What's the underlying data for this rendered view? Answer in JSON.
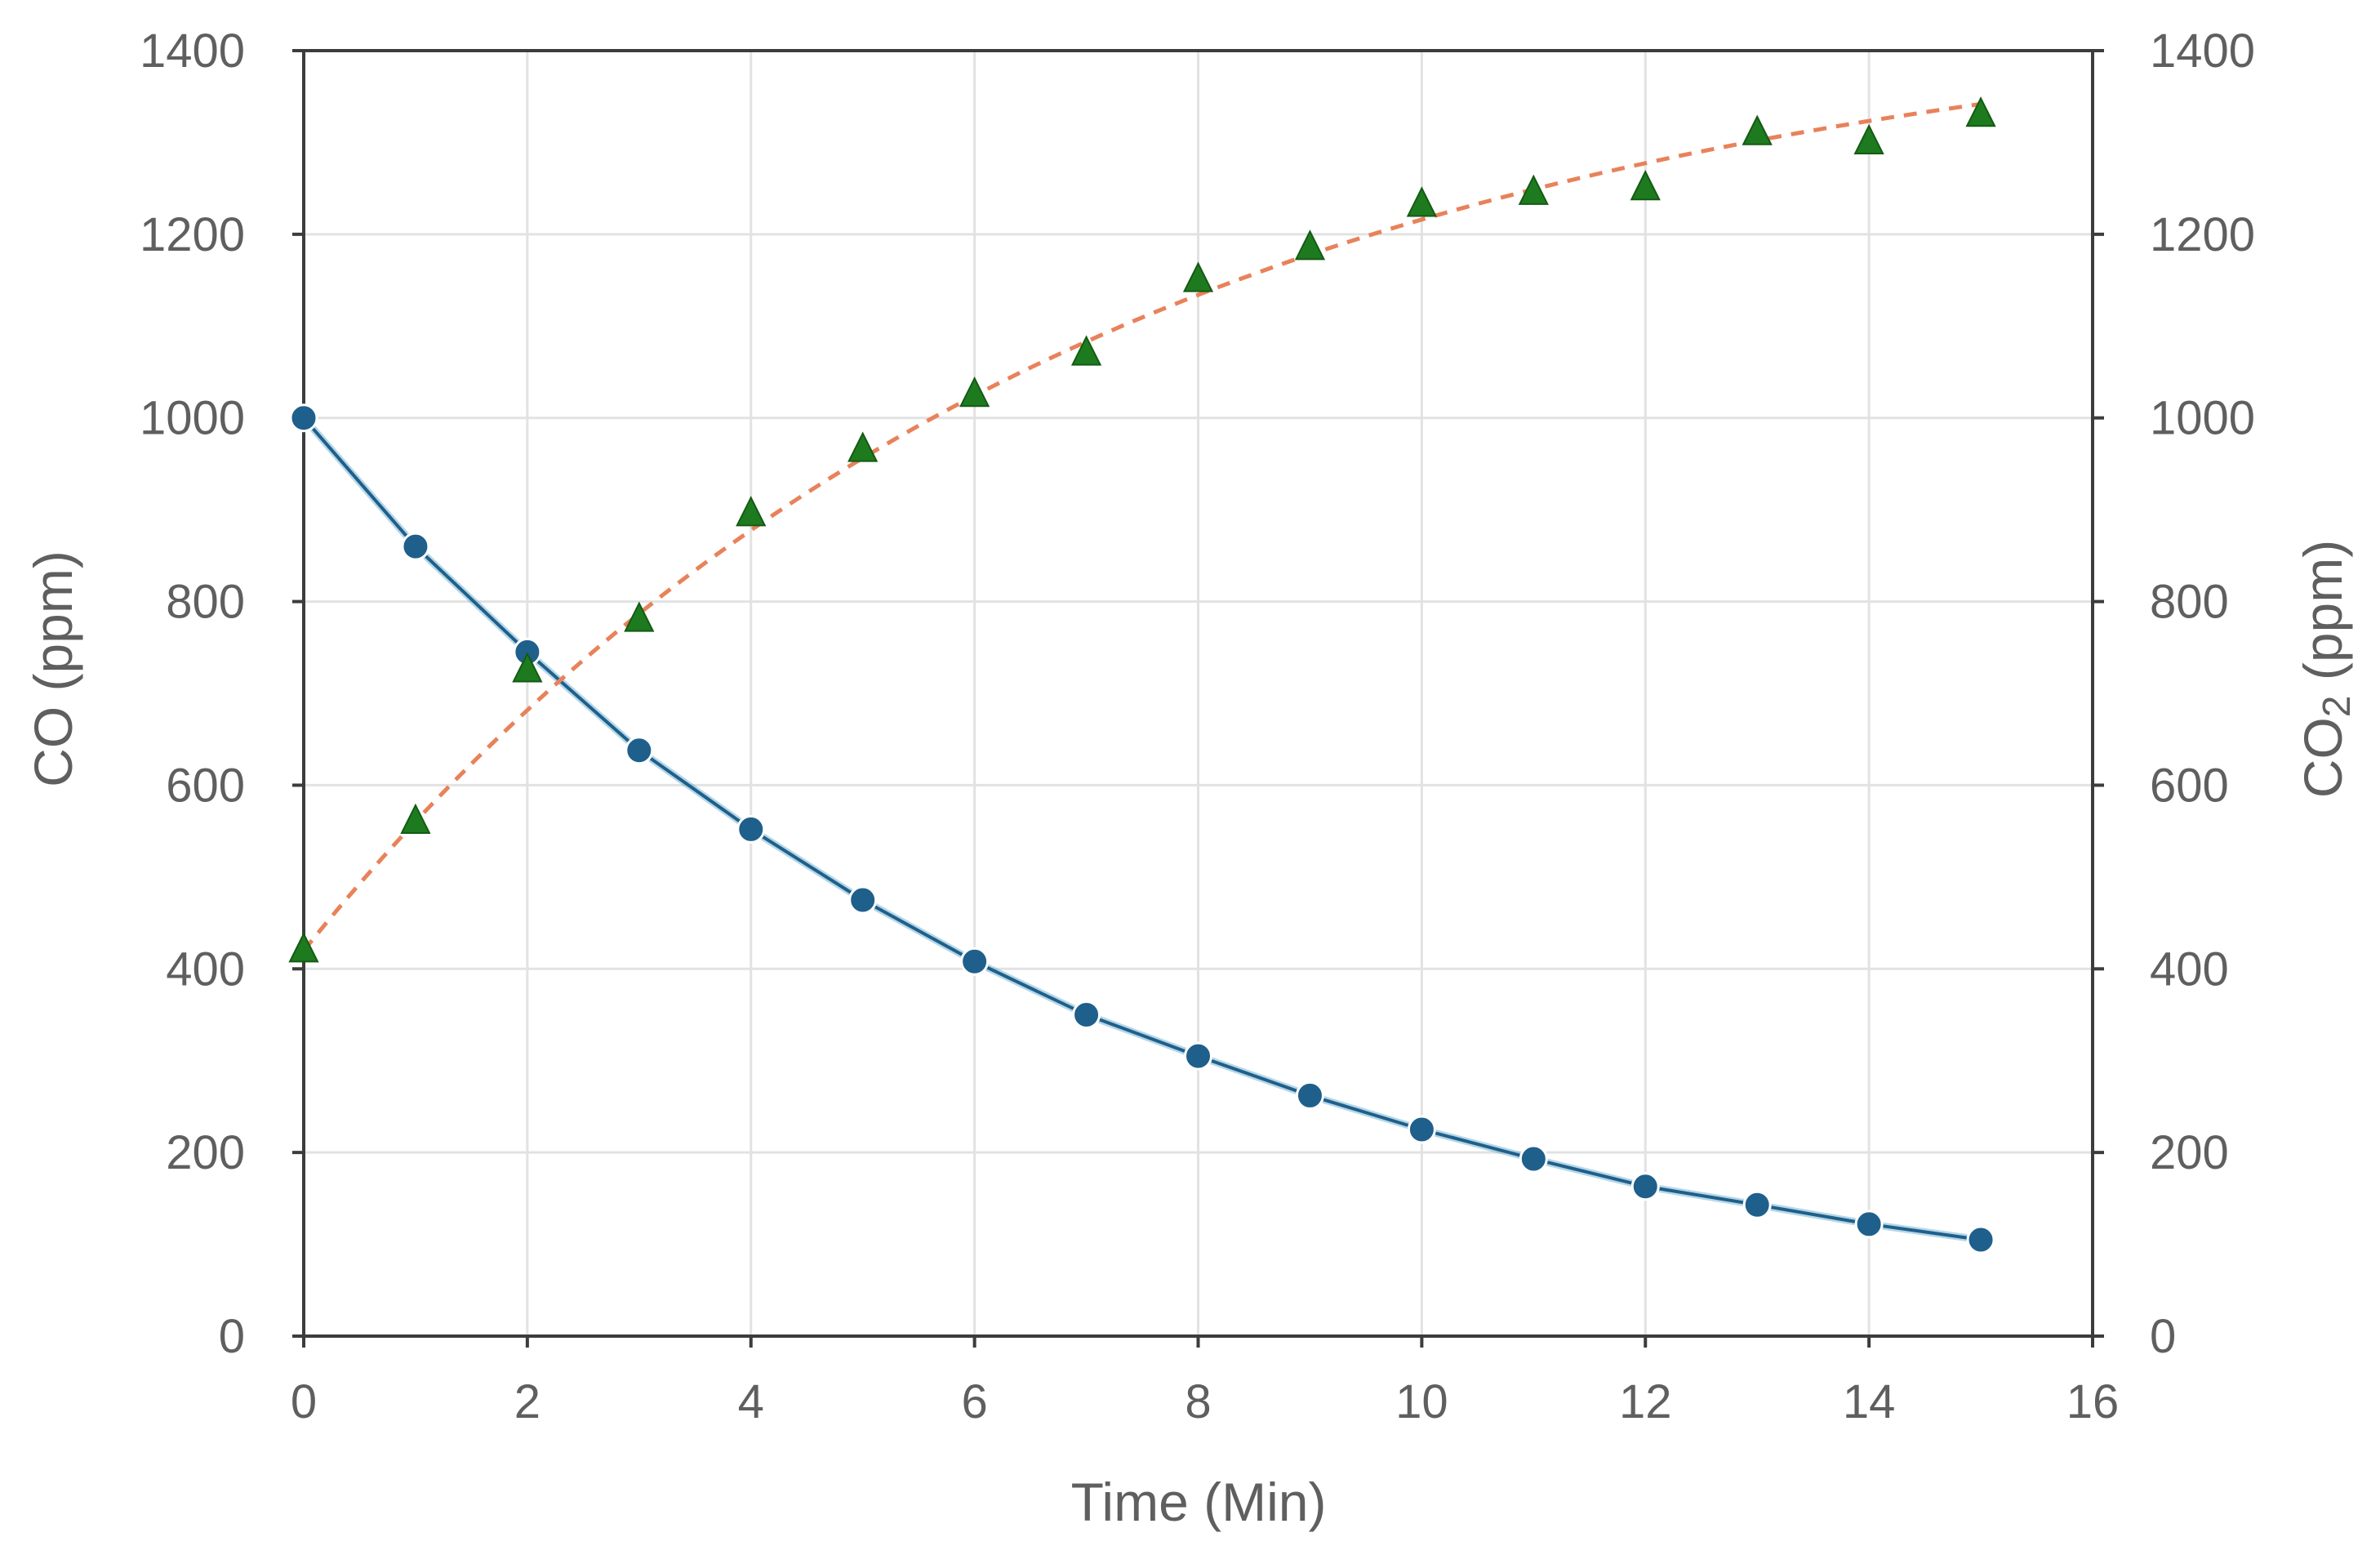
{
  "chart_data": {
    "type": "scatter",
    "title": "",
    "xlabel": "Time (Min)",
    "ylabel_left": "CO (ppm)",
    "ylabel_right_main": "CO",
    "ylabel_right_sub": "2",
    "ylabel_right_tail": " (ppm)",
    "xlim": [
      0,
      16
    ],
    "ylim": [
      0,
      1400
    ],
    "x_ticks": [
      0,
      2,
      4,
      6,
      8,
      10,
      12,
      14,
      16
    ],
    "y_ticks": [
      0,
      200,
      400,
      600,
      800,
      1000,
      1200,
      1400
    ],
    "grid": true,
    "series": [
      {
        "name": "CO",
        "axis": "left",
        "marker": "circle",
        "color": "#1f5f8b",
        "line_style": "solid",
        "fit": "exponential-decay",
        "x": [
          0,
          1,
          2,
          3,
          4,
          5,
          6,
          7,
          8,
          9,
          10,
          11,
          12,
          13,
          14,
          15
        ],
        "values": [
          1000,
          860,
          745,
          638,
          552,
          475,
          408,
          350,
          305,
          262,
          225,
          193,
          163,
          143,
          122,
          105
        ]
      },
      {
        "name": "CO2",
        "axis": "right",
        "marker": "triangle",
        "color": "#1e7a1e",
        "fit_color": "#e8825a",
        "line_style": "dashed",
        "fit": "exponential-rise",
        "x": [
          0,
          1,
          2,
          3,
          4,
          5,
          6,
          7,
          8,
          9,
          10,
          11,
          12,
          13,
          14,
          15
        ],
        "values": [
          420,
          560,
          725,
          780,
          895,
          965,
          1025,
          1070,
          1150,
          1185,
          1232,
          1245,
          1250,
          1310,
          1300,
          1330
        ]
      }
    ]
  }
}
